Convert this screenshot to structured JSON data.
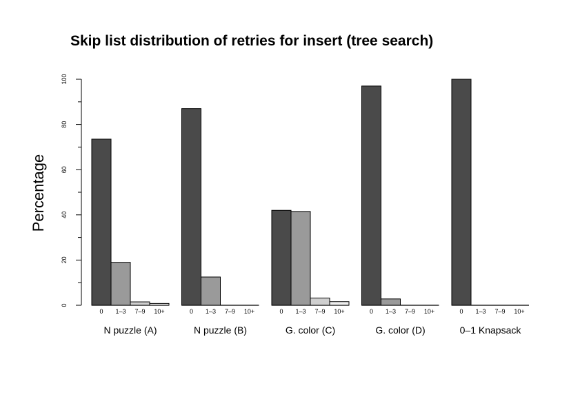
{
  "chart_data": {
    "type": "bar",
    "title": "Skip list distribution of retries for insert (tree search)",
    "ylabel": "Percentage",
    "xlabel": "",
    "ylim": [
      0,
      100
    ],
    "yticks": [
      0,
      20,
      40,
      60,
      80,
      100
    ],
    "categories": [
      "0",
      "1–3",
      "7–9",
      "10+"
    ],
    "category_colors": [
      "#4a4a4a",
      "#9a9a9a",
      "#cfcfcf",
      "#eeeeee"
    ],
    "groups": [
      {
        "label": "N puzzle (A)",
        "values": [
          73.5,
          19,
          1.5,
          0.8
        ]
      },
      {
        "label": "N puzzle (B)",
        "values": [
          87,
          12.5,
          0,
          0
        ]
      },
      {
        "label": "G. color (C)",
        "values": [
          42,
          41.5,
          3.2,
          1.6
        ]
      },
      {
        "label": "G. color (D)",
        "values": [
          97,
          2.8,
          0,
          0
        ]
      },
      {
        "label": "0–1 Knapsack",
        "values": [
          100,
          0,
          0,
          0
        ]
      }
    ]
  }
}
